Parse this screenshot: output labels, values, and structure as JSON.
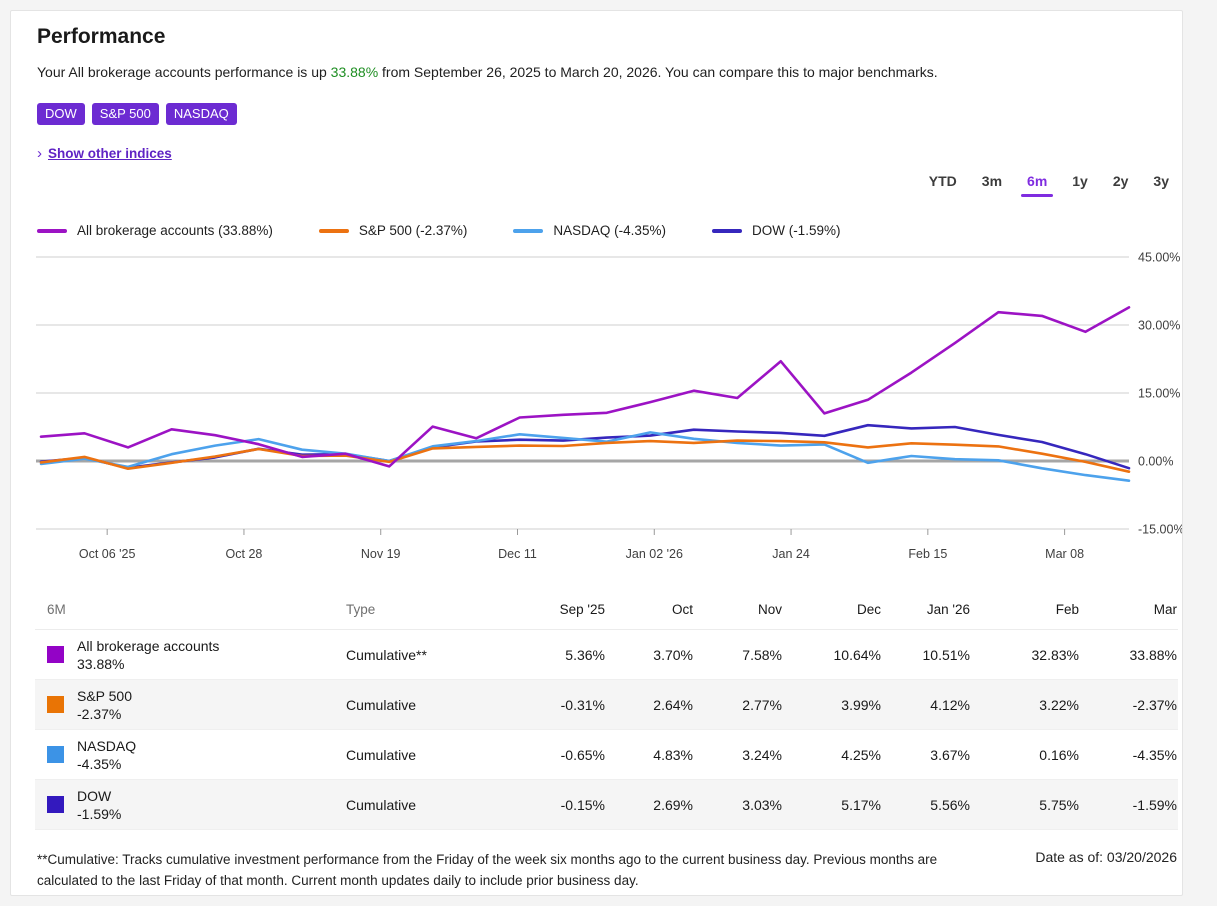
{
  "page": {
    "title": "Performance"
  },
  "subtitle": {
    "prefix": "Your All brokerage accounts performance is up ",
    "highlight": "33.88%",
    "suffix": " from September 26, 2025 to March 20, 2026. You can compare this to major benchmarks.",
    "highlight_color": "#1e8e22"
  },
  "badges": [
    "DOW",
    "S&P 500",
    "NASDAQ"
  ],
  "badge_color": "#6c2bd2",
  "show_indices": {
    "chevron": "›",
    "label": "Show other indices"
  },
  "time_ranges": {
    "items": [
      "YTD",
      "3m",
      "6m",
      "1y",
      "2y",
      "3y"
    ],
    "active": "6m",
    "active_color": "#7f2ce0"
  },
  "chart_data": {
    "type": "line",
    "title": "All brokerage accounts performance vs benchmarks (6M, weekly)",
    "x_weekly_dates": [
      "Sep 26 '25",
      "Oct 3",
      "Oct 10",
      "Oct 17",
      "Oct 24",
      "Oct 31",
      "Nov 7",
      "Nov 14",
      "Nov 21",
      "Nov 28",
      "Dec 5",
      "Dec 12",
      "Dec 19",
      "Dec 26",
      "Jan 2 '26",
      "Jan 9",
      "Jan 16",
      "Jan 23",
      "Jan 30",
      "Feb 6",
      "Feb 13",
      "Feb 20",
      "Feb 27",
      "Mar 6",
      "Mar 13",
      "Mar 20"
    ],
    "series": [
      {
        "name": "All brokerage accounts",
        "legend_label": "All brokerage accounts (33.88%)",
        "color": "#9c13c4",
        "values": [
          5.36,
          6.1,
          3.0,
          7.0,
          5.7,
          3.7,
          0.9,
          1.6,
          -1.2,
          7.58,
          5.0,
          9.6,
          10.2,
          10.64,
          13.0,
          15.5,
          13.9,
          22.0,
          10.51,
          13.5,
          19.5,
          26.0,
          32.83,
          32.0,
          28.5,
          33.88
        ]
      },
      {
        "name": "S&P 500",
        "legend_label": "S&P 500 (-2.37%)",
        "color": "#ec7211",
        "values": [
          -0.31,
          0.9,
          -1.7,
          -0.4,
          1.0,
          2.64,
          1.1,
          1.2,
          -0.2,
          2.77,
          3.1,
          3.4,
          3.3,
          3.99,
          4.4,
          4.0,
          4.5,
          4.4,
          4.12,
          3.0,
          3.9,
          3.6,
          3.22,
          1.6,
          -0.2,
          -2.37
        ]
      },
      {
        "name": "NASDAQ",
        "legend_label": "NASDAQ (-4.35%)",
        "color": "#4da2ec",
        "values": [
          -0.65,
          0.5,
          -1.3,
          1.5,
          3.4,
          4.83,
          2.5,
          1.6,
          0.0,
          3.24,
          4.4,
          5.9,
          5.1,
          4.25,
          6.3,
          4.9,
          4.0,
          3.4,
          3.67,
          -0.4,
          1.1,
          0.4,
          0.16,
          -1.6,
          -3.1,
          -4.35
        ]
      },
      {
        "name": "DOW",
        "legend_label": "DOW (-1.59%)",
        "color": "#3627bd",
        "values": [
          -0.15,
          0.7,
          -1.5,
          -0.3,
          0.8,
          2.69,
          1.4,
          1.5,
          0.0,
          3.03,
          4.3,
          4.7,
          4.5,
          5.17,
          5.6,
          6.9,
          6.5,
          6.2,
          5.56,
          7.9,
          7.2,
          7.5,
          5.75,
          4.2,
          1.5,
          -1.59
        ]
      }
    ],
    "y_axis": {
      "tick_values": [
        45,
        30,
        15,
        0,
        -15
      ],
      "tick_labels": [
        "45.00%",
        "30.00%",
        "15.00%",
        "0.00%",
        "-15.00%"
      ],
      "ylim": [
        -15,
        45
      ]
    },
    "x_axis": {
      "labels": [
        "Oct 06 '25",
        "Oct 28",
        "Nov 19",
        "Dec 11",
        "Jan 02 '26",
        "Jan 24",
        "Feb 15",
        "Mar 08"
      ],
      "label_day_offsets": [
        10,
        32,
        54,
        76,
        98,
        120,
        142,
        164
      ],
      "total_days": 175
    },
    "legend_position": "top-left",
    "grid": "horizontal"
  },
  "table": {
    "headers": [
      "6M",
      "Type",
      "Sep '25",
      "Oct",
      "Nov",
      "Dec",
      "Jan '26",
      "Feb",
      "Mar"
    ],
    "rows": [
      {
        "name": "All brokerage accounts",
        "value": "33.88%",
        "color": "#9303c6",
        "type": "Cumulative**",
        "cells": [
          "5.36%",
          "3.70%",
          "7.58%",
          "10.64%",
          "10.51%",
          "32.83%",
          "33.88%"
        ]
      },
      {
        "name": "S&P 500",
        "value": "-2.37%",
        "color": "#e97405",
        "type": "Cumulative",
        "cells": [
          "-0.31%",
          "2.64%",
          "2.77%",
          "3.99%",
          "4.12%",
          "3.22%",
          "-2.37%"
        ]
      },
      {
        "name": "NASDAQ",
        "value": "-4.35%",
        "color": "#3c93e6",
        "type": "Cumulative",
        "cells": [
          "-0.65%",
          "4.83%",
          "3.24%",
          "4.25%",
          "3.67%",
          "0.16%",
          "-4.35%"
        ]
      },
      {
        "name": "DOW",
        "value": "-1.59%",
        "color": "#3319be",
        "type": "Cumulative",
        "cells": [
          "-0.15%",
          "2.69%",
          "3.03%",
          "5.17%",
          "5.56%",
          "5.75%",
          "-1.59%"
        ]
      }
    ]
  },
  "footnote": {
    "text": "**Cumulative: Tracks cumulative investment performance from the Friday of the week six months ago to the current business day. Previous months are calculated to the last Friday of that month. Current month updates daily to include prior business day.",
    "date_label": "Date as of: 03/20/2026"
  }
}
